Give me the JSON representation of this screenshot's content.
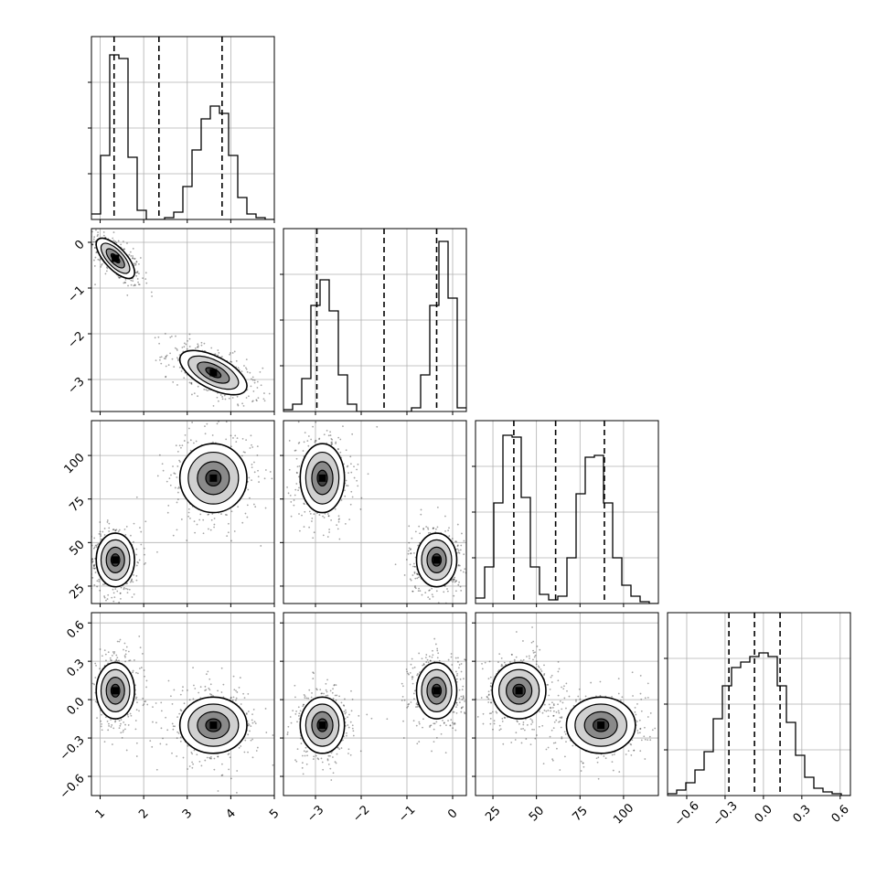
{
  "chart_data": {
    "type": "corner",
    "grid": true,
    "parameters": [
      {
        "range": [
          0.8,
          5.0
        ],
        "ticks": [
          1,
          2,
          3,
          4,
          5
        ],
        "tick_labels": [
          "1",
          "2",
          "3",
          "4",
          "5"
        ],
        "quantiles": [
          1.32,
          2.35,
          3.8
        ],
        "hist": [
          0.03,
          0.35,
          0.9,
          0.88,
          0.34,
          0.05,
          0.0,
          0.0,
          0.01,
          0.04,
          0.18,
          0.38,
          0.55,
          0.62,
          0.58,
          0.35,
          0.12,
          0.03,
          0.01,
          0.0
        ]
      },
      {
        "range": [
          -3.7,
          0.3
        ],
        "ticks": [
          -3,
          -2,
          -1,
          0
        ],
        "tick_labels": [
          "−3",
          "−2",
          "−1",
          "0"
        ],
        "quantiles": [
          -2.97,
          -1.5,
          -0.35
        ],
        "hist": [
          0.01,
          0.04,
          0.18,
          0.58,
          0.72,
          0.55,
          0.2,
          0.04,
          0.0,
          0.0,
          0.0,
          0.0,
          0.0,
          0.0,
          0.02,
          0.2,
          0.58,
          0.93,
          0.62,
          0.02
        ]
      },
      {
        "range": [
          15,
          120
        ],
        "ticks": [
          25,
          50,
          75,
          100
        ],
        "tick_labels": [
          "25",
          "50",
          "75",
          "100"
        ],
        "quantiles": [
          37,
          61,
          89
        ],
        "hist": [
          0.03,
          0.2,
          0.55,
          0.92,
          0.91,
          0.58,
          0.2,
          0.05,
          0.02,
          0.04,
          0.25,
          0.6,
          0.8,
          0.81,
          0.55,
          0.25,
          0.1,
          0.04,
          0.01,
          0.0
        ]
      },
      {
        "range": [
          -0.75,
          0.68
        ],
        "ticks": [
          -0.6,
          -0.3,
          0.0,
          0.3,
          0.6
        ],
        "tick_labels": [
          "−0.6",
          "−0.3",
          "0.0",
          "0.3",
          "0.6"
        ],
        "quantiles": [
          -0.27,
          -0.07,
          0.13
        ],
        "hist": [
          0.01,
          0.03,
          0.07,
          0.14,
          0.24,
          0.42,
          0.6,
          0.7,
          0.73,
          0.76,
          0.78,
          0.76,
          0.6,
          0.4,
          0.22,
          0.1,
          0.04,
          0.02,
          0.01,
          0.0
        ]
      }
    ],
    "clusters": [
      {
        "center": [
          1.35,
          -0.35,
          40,
          0.07
        ],
        "sd": [
          0.2,
          0.2,
          7,
          0.1
        ],
        "rho": {
          "0,1": -0.7
        }
      },
      {
        "center": [
          3.6,
          -2.85,
          87,
          -0.2
        ],
        "sd": [
          0.35,
          0.22,
          9,
          0.1
        ],
        "rho": {
          "0,1": -0.6
        }
      }
    ]
  }
}
